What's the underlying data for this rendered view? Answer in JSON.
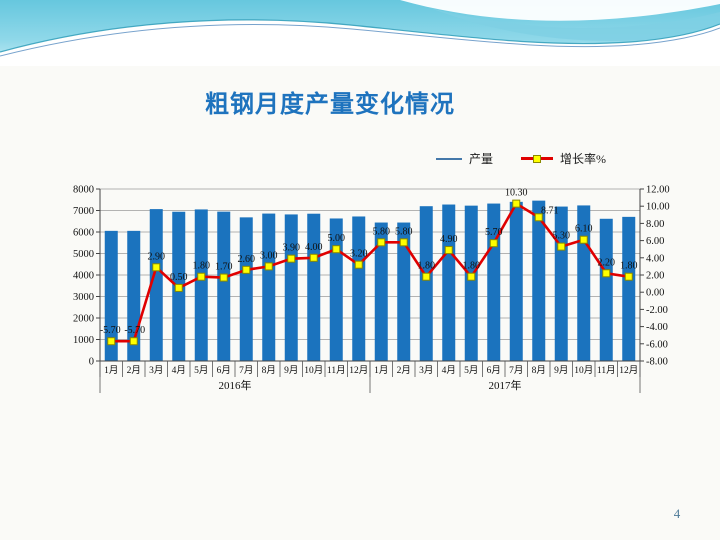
{
  "slide": {
    "title": "粗钢月度产量变化情况",
    "page_number": "4"
  },
  "legend": {
    "items": [
      {
        "label": "产量",
        "swatch": "blue-line",
        "color": "#4478AA"
      },
      {
        "label": "增长率%",
        "swatch": "red-line-yellow-square",
        "color": "#E00000",
        "marker_color": "#FFFF00"
      }
    ]
  },
  "chart_data": {
    "type": "combo-bar-line",
    "title": "",
    "categories": [
      "1月",
      "2月",
      "3月",
      "4月",
      "5月",
      "6月",
      "7月",
      "8月",
      "9月",
      "10月",
      "11月",
      "12月",
      "1月",
      "2月",
      "3月",
      "4月",
      "5月",
      "6月",
      "7月",
      "8月",
      "9月",
      "10月",
      "11月",
      "12月"
    ],
    "year_groups": [
      {
        "label": "2016年",
        "span": 12
      },
      {
        "label": "2017年",
        "span": 12
      }
    ],
    "series": [
      {
        "name": "产量",
        "type": "bar",
        "axis": "left",
        "color": "#1B73BE",
        "values": [
          6053,
          6053,
          7065,
          6942,
          7050,
          6947,
          6681,
          6857,
          6817,
          6851,
          6629,
          6722,
          6440,
          6440,
          7200,
          7278,
          7226,
          7323,
          7402,
          7459,
          7183,
          7236,
          6615,
          6704
        ]
      },
      {
        "name": "增长率%",
        "type": "line",
        "axis": "right",
        "color": "#E00000",
        "marker_fill": "#FFFF00",
        "marker_stroke": "#8a8a00",
        "values": [
          -5.7,
          -5.7,
          2.9,
          0.5,
          1.8,
          1.7,
          2.6,
          3.0,
          3.9,
          4.0,
          5.0,
          3.2,
          5.8,
          5.8,
          1.8,
          4.9,
          1.8,
          5.7,
          10.3,
          8.71,
          5.3,
          6.1,
          2.2,
          1.8
        ],
        "labels": [
          "-5.70",
          "-5.70",
          "2.90",
          "0.50",
          "1.80",
          "1.70",
          "2.60",
          "3.00",
          "3.90",
          "4.00",
          "5.00",
          "3.20",
          "5.80",
          "5.80",
          "1.80",
          "4.90",
          "1.80",
          "5.70",
          "10.30",
          "8.71",
          "5.30",
          "6.10",
          "2.20",
          "1.80"
        ]
      }
    ],
    "left_axis": {
      "min": 0,
      "max": 8000,
      "step": 1000,
      "labels": [
        "0",
        "1000",
        "2000",
        "3000",
        "4000",
        "5000",
        "6000",
        "7000",
        "8000"
      ]
    },
    "right_axis": {
      "min": -8,
      "max": 12,
      "step": 2,
      "labels": [
        "-8.00",
        "-6.00",
        "-4.00",
        "-2.00",
        "0.00",
        "2.00",
        "4.00",
        "6.00",
        "8.00",
        "10.00",
        "12.00"
      ]
    },
    "grid": true,
    "legend_position": "top-right"
  }
}
